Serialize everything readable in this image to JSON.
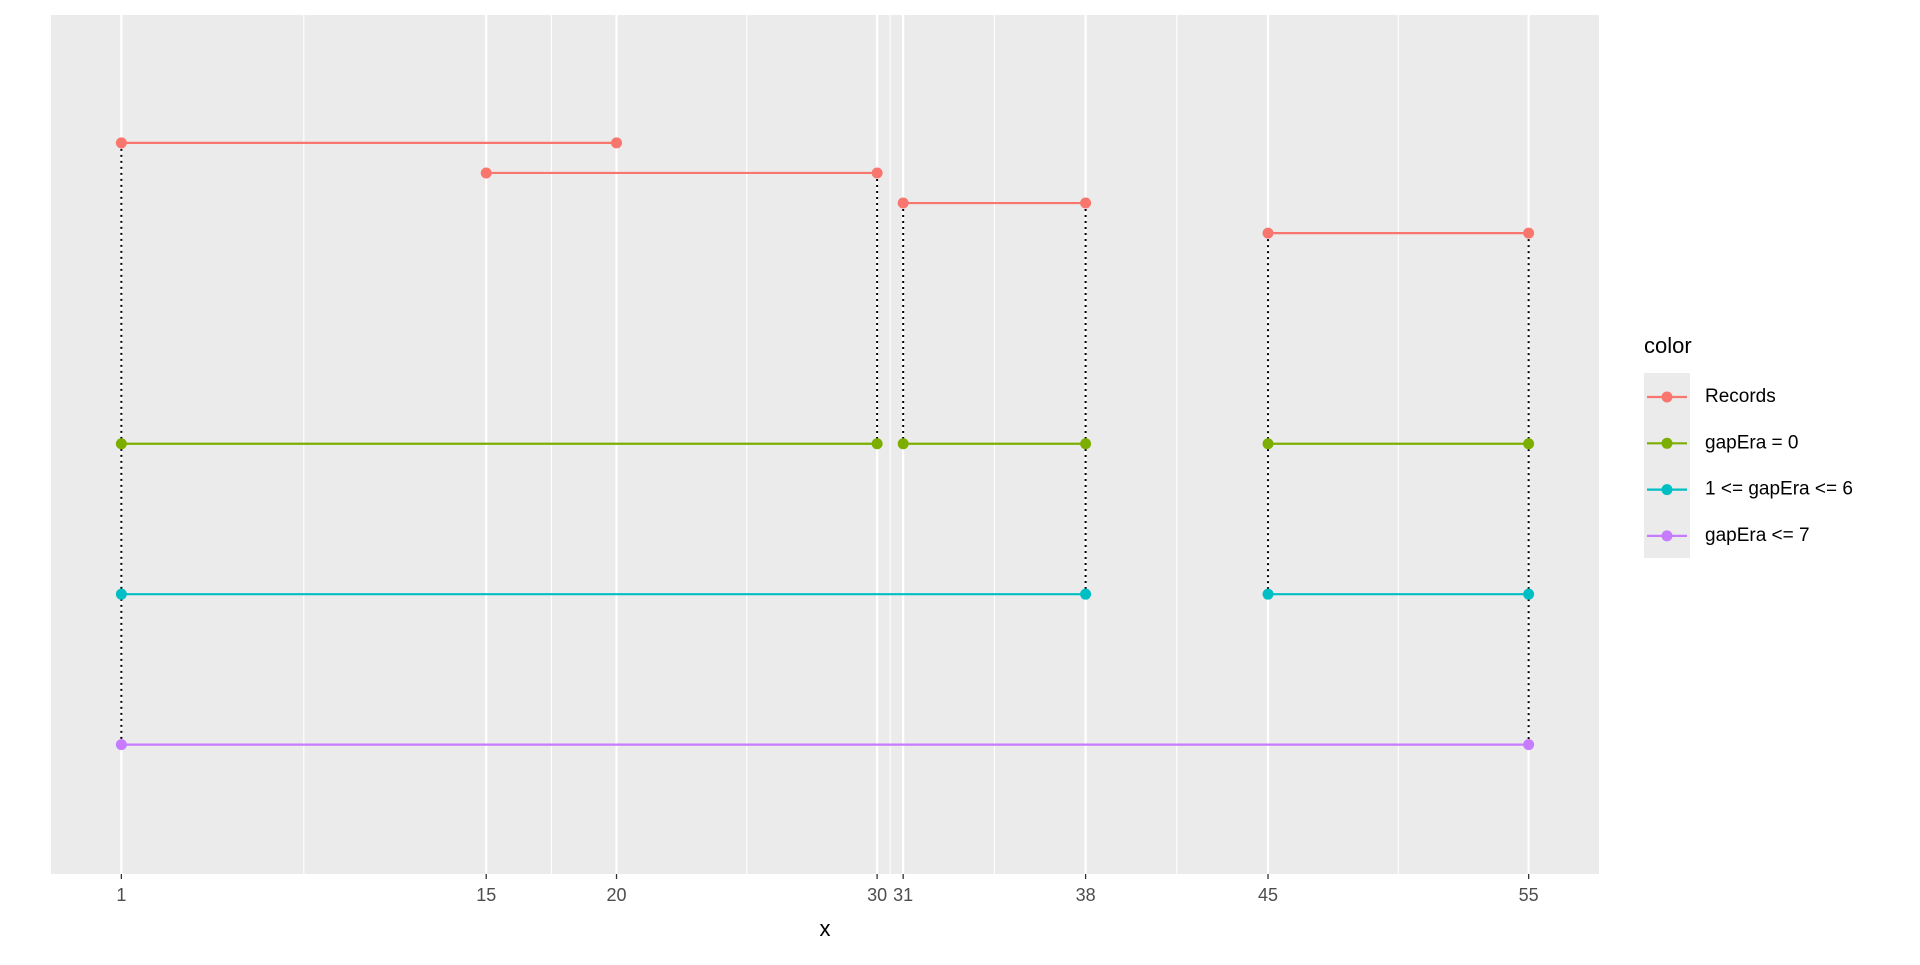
{
  "chart_data": {
    "type": "segment",
    "x_label": "x",
    "legend_title": "color",
    "xlim": [
      -1.7,
      57.7
    ],
    "xticks": [
      1,
      15,
      20,
      30,
      31,
      38,
      45,
      55
    ],
    "ylim": [
      0.14,
      5.85
    ],
    "grid": true,
    "legend_position": "right",
    "series": [
      {
        "name": "Records",
        "color": "#F8766D",
        "segments": [
          {
            "x": [
              1,
              20
            ],
            "y": [
              5,
              5
            ]
          },
          {
            "x": [
              15,
              30
            ],
            "y": [
              4.8,
              4.8
            ]
          },
          {
            "x": [
              31,
              38
            ],
            "y": [
              4.6,
              4.6
            ]
          },
          {
            "x": [
              45,
              55
            ],
            "y": [
              4.4,
              4.4
            ]
          }
        ]
      },
      {
        "name": "gapEra = 0",
        "color": "#7CAE00",
        "segments": [
          {
            "x": [
              1,
              30
            ],
            "y": [
              3,
              3
            ]
          },
          {
            "x": [
              31,
              38
            ],
            "y": [
              3,
              3
            ]
          },
          {
            "x": [
              45,
              55
            ],
            "y": [
              3,
              3
            ]
          }
        ]
      },
      {
        "name": "1 <= gapEra <= 6",
        "color": "#00BFC4",
        "segments": [
          {
            "x": [
              1,
              38
            ],
            "y": [
              2,
              2
            ]
          },
          {
            "x": [
              45,
              55
            ],
            "y": [
              2,
              2
            ]
          }
        ]
      },
      {
        "name": "gapEra <= 7",
        "color": "#C77CFF",
        "segments": [
          {
            "x": [
              1,
              55
            ],
            "y": [
              1,
              1
            ]
          }
        ]
      }
    ]
  }
}
